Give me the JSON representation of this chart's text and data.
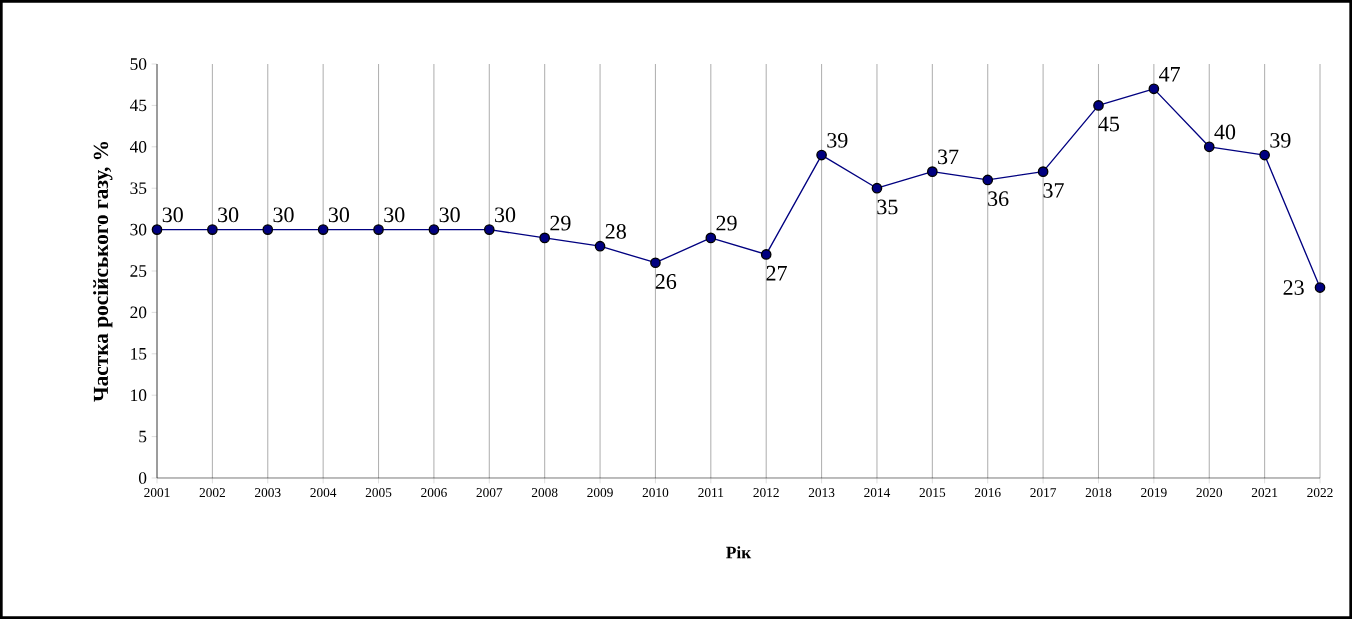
{
  "chart_data": {
    "type": "line",
    "xlabel": "Рік",
    "ylabel": "Частка російського газу, %",
    "categories": [
      "2001",
      "2002",
      "2003",
      "2004",
      "2005",
      "2006",
      "2007",
      "2008",
      "2009",
      "2010",
      "2011",
      "2012",
      "2013",
      "2014",
      "2015",
      "2016",
      "2017",
      "2018",
      "2019",
      "2020",
      "2021",
      "2022"
    ],
    "values": [
      30,
      30,
      30,
      30,
      30,
      30,
      30,
      29,
      28,
      26,
      29,
      27,
      39,
      35,
      37,
      36,
      37,
      45,
      47,
      40,
      39,
      23
    ],
    "color": "#000080",
    "marker": "circle",
    "line_style": "solid",
    "grid": "x",
    "data_labels": true,
    "ylim": [
      0,
      50
    ],
    "yticks": [
      0,
      5,
      10,
      15,
      20,
      25,
      30,
      35,
      40,
      45,
      50
    ]
  }
}
